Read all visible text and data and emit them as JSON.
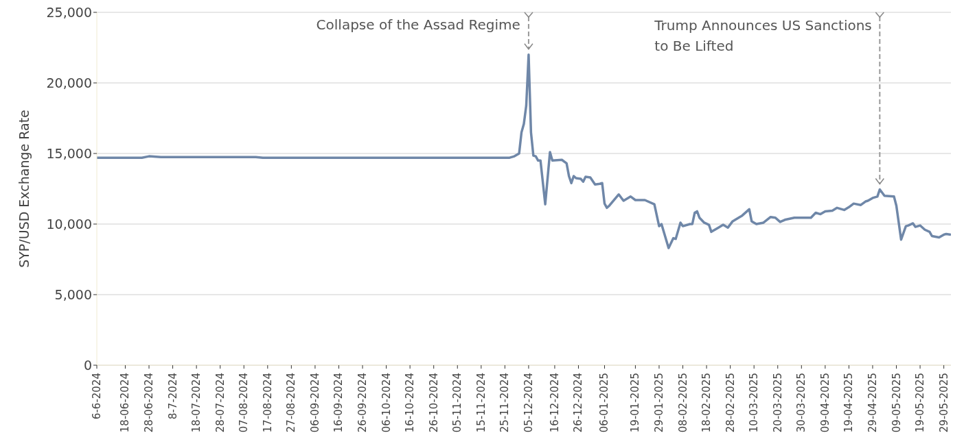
{
  "chart_data": {
    "type": "line",
    "ylabel": "SYP/USD Exchange Rate",
    "grid": "y",
    "marker": "none",
    "line_style": "solid",
    "xlim": [
      "2024-06-06",
      "2025-06-01"
    ],
    "ylim": [
      0,
      25000
    ],
    "yticks": [
      {
        "value": 0,
        "label": "0"
      },
      {
        "value": 5000,
        "label": "5,000"
      },
      {
        "value": 10000,
        "label": "10,000"
      },
      {
        "value": 15000,
        "label": "15,000"
      },
      {
        "value": 20000,
        "label": "20,000"
      },
      {
        "value": 25000,
        "label": "25,000"
      }
    ],
    "xticks": [
      {
        "value": "2024-06-06",
        "label": "6-6-2024"
      },
      {
        "value": "2024-06-18",
        "label": "18-06-2024"
      },
      {
        "value": "2024-06-28",
        "label": "28-06-2024"
      },
      {
        "value": "2024-07-08",
        "label": "8-7-2024"
      },
      {
        "value": "2024-07-18",
        "label": "18-07-2024"
      },
      {
        "value": "2024-07-28",
        "label": "28-07-2024"
      },
      {
        "value": "2024-08-07",
        "label": "07-08-2024"
      },
      {
        "value": "2024-08-17",
        "label": "17-08-2024"
      },
      {
        "value": "2024-08-27",
        "label": "27-08-2024"
      },
      {
        "value": "2024-09-06",
        "label": "06-09-2024"
      },
      {
        "value": "2024-09-16",
        "label": "16-09-2024"
      },
      {
        "value": "2024-09-26",
        "label": "26-09-2024"
      },
      {
        "value": "2024-10-06",
        "label": "06-10-2024"
      },
      {
        "value": "2024-10-16",
        "label": "16-10-2024"
      },
      {
        "value": "2024-10-26",
        "label": "26-10-2024"
      },
      {
        "value": "2024-11-05",
        "label": "05-11-2024"
      },
      {
        "value": "2024-11-15",
        "label": "15-11-2024"
      },
      {
        "value": "2024-11-25",
        "label": "25-11-2024"
      },
      {
        "value": "2024-12-05",
        "label": "05-12-2024"
      },
      {
        "value": "2024-12-16",
        "label": "16-12-2024"
      },
      {
        "value": "2024-12-26",
        "label": "26-12-2024"
      },
      {
        "value": "2025-01-06",
        "label": "06-01-2025"
      },
      {
        "value": "2025-01-19",
        "label": "19-01-2025"
      },
      {
        "value": "2025-01-29",
        "label": "29-01-2025"
      },
      {
        "value": "2025-02-08",
        "label": "08-02-2025"
      },
      {
        "value": "2025-02-18",
        "label": "18-02-2025"
      },
      {
        "value": "2025-02-28",
        "label": "28-02-2025"
      },
      {
        "value": "2025-03-10",
        "label": "10-03-2025"
      },
      {
        "value": "2025-03-20",
        "label": "20-03-2025"
      },
      {
        "value": "2025-03-30",
        "label": "30-03-2025"
      },
      {
        "value": "2025-04-09",
        "label": "09-04-2025"
      },
      {
        "value": "2025-04-19",
        "label": "19-04-2025"
      },
      {
        "value": "2025-04-29",
        "label": "29-04-2025"
      },
      {
        "value": "2025-05-09",
        "label": "09-05-2025"
      },
      {
        "value": "2025-05-19",
        "label": "19-05-2025"
      },
      {
        "value": "2025-05-29",
        "label": "29-05-2025"
      }
    ],
    "x": [
      "2024-06-06",
      "2024-06-25",
      "2024-06-28",
      "2024-07-03",
      "2024-08-12",
      "2024-08-15",
      "2024-11-27",
      "2024-11-29",
      "2024-12-01",
      "2024-12-02",
      "2024-12-03",
      "2024-12-04",
      "2024-12-05",
      "2024-12-06",
      "2024-12-07",
      "2024-12-08",
      "2024-12-09",
      "2024-12-10",
      "2024-12-12",
      "2024-12-14",
      "2024-12-15",
      "2024-12-19",
      "2024-12-21",
      "2024-12-22",
      "2024-12-23",
      "2024-12-24",
      "2024-12-25",
      "2024-12-27",
      "2024-12-28",
      "2024-12-29",
      "2024-12-31",
      "2025-01-02",
      "2025-01-04",
      "2025-01-05",
      "2025-01-06",
      "2025-01-07",
      "2025-01-08",
      "2025-01-12",
      "2025-01-14",
      "2025-01-17",
      "2025-01-19",
      "2025-01-23",
      "2025-01-27",
      "2025-01-29",
      "2025-01-30",
      "2025-02-02",
      "2025-02-04",
      "2025-02-05",
      "2025-02-07",
      "2025-02-08",
      "2025-02-11",
      "2025-02-12",
      "2025-02-13",
      "2025-02-14",
      "2025-02-15",
      "2025-02-17",
      "2025-02-19",
      "2025-02-20",
      "2025-02-23",
      "2025-02-25",
      "2025-02-27",
      "2025-03-01",
      "2025-03-04",
      "2025-03-05",
      "2025-03-08",
      "2025-03-09",
      "2025-03-11",
      "2025-03-14",
      "2025-03-17",
      "2025-03-19",
      "2025-03-21",
      "2025-03-23",
      "2025-03-27",
      "2025-04-03",
      "2025-04-05",
      "2025-04-07",
      "2025-04-09",
      "2025-04-12",
      "2025-04-14",
      "2025-04-17",
      "2025-04-19",
      "2025-04-21",
      "2025-04-24",
      "2025-04-26",
      "2025-04-27",
      "2025-04-29",
      "2025-05-01",
      "2025-05-02",
      "2025-05-04",
      "2025-05-08",
      "2025-05-09",
      "2025-05-11",
      "2025-05-13",
      "2025-05-14",
      "2025-05-16",
      "2025-05-17",
      "2025-05-19",
      "2025-05-21",
      "2025-05-23",
      "2025-05-24",
      "2025-05-27",
      "2025-05-29",
      "2025-05-30",
      "2025-06-01"
    ],
    "series": [
      {
        "color": "#6f87a8",
        "values": [
          14700,
          14700,
          14800,
          14750,
          14750,
          14700,
          14700,
          14800,
          15000,
          16500,
          17100,
          18400,
          22000,
          16500,
          14850,
          14800,
          14500,
          14500,
          11400,
          15100,
          14500,
          14550,
          14300,
          13400,
          12900,
          13400,
          13250,
          13200,
          13000,
          13350,
          13300,
          12800,
          12850,
          12900,
          11450,
          11150,
          11300,
          12100,
          11650,
          11950,
          11700,
          11700,
          11400,
          9850,
          10000,
          8300,
          9000,
          8950,
          10100,
          9850,
          10000,
          10000,
          10800,
          10900,
          10450,
          10100,
          9950,
          9450,
          9750,
          9950,
          9750,
          10200,
          10500,
          10600,
          11050,
          10200,
          10000,
          10100,
          10500,
          10450,
          10150,
          10300,
          10450,
          10450,
          10800,
          10700,
          10900,
          10950,
          11150,
          11000,
          11200,
          11450,
          11350,
          11600,
          11650,
          11850,
          11950,
          12450,
          12000,
          11950,
          11300,
          8900,
          9850,
          9900,
          10050,
          9800,
          9900,
          9600,
          9450,
          9150,
          9050,
          9250,
          9300,
          9250
        ]
      }
    ],
    "annotations": [
      {
        "text": "Collapse of the Assad Regime",
        "x": "2024-12-05",
        "y": 22000
      },
      {
        "text": "Trump Announces US Sanctions to Be Lifted",
        "x": "2025-05-02",
        "y": 12450
      }
    ]
  }
}
